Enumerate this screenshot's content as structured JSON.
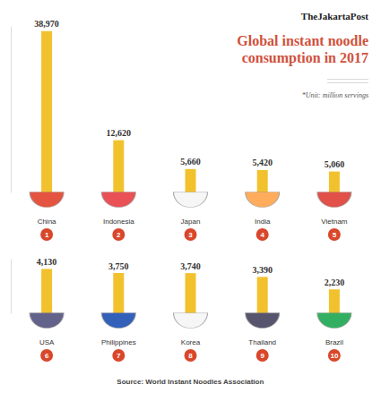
{
  "header": {
    "brand": "TheJakartaPost",
    "title": "Global instant noodle consumption in 2017",
    "note": "*Unit: million servings"
  },
  "footer": {
    "source": "Source: World Instant Noodles Association"
  },
  "chart_data": [
    {
      "type": "bar",
      "categories": [
        "China",
        "Indonesia",
        "Japan",
        "India",
        "Vietnam"
      ],
      "values": [
        38970,
        12620,
        5660,
        5420,
        5060
      ],
      "value_labels": [
        "38,970",
        "12,620",
        "5,660",
        "5,420",
        "5,060"
      ],
      "ranks": [
        1,
        2,
        3,
        4,
        5
      ],
      "color": "#f2c12e",
      "ylim": [
        0,
        40000
      ],
      "grid": false,
      "data_labels": true,
      "tick_labels": "x"
    },
    {
      "type": "bar",
      "categories": [
        "USA",
        "Philippines",
        "Korea",
        "Thailand",
        "Brazil"
      ],
      "values": [
        4130,
        3750,
        3740,
        3390,
        2230
      ],
      "value_labels": [
        "4,130",
        "3,750",
        "3,740",
        "3,390",
        "2,230"
      ],
      "ranks": [
        6,
        7,
        8,
        9,
        10
      ],
      "color": "#f2c12e",
      "ylim": [
        0,
        5000
      ],
      "grid": false,
      "data_labels": true,
      "tick_labels": "x"
    }
  ]
}
